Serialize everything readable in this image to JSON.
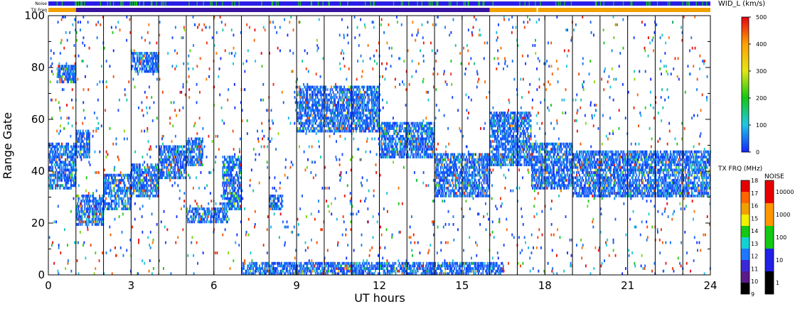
{
  "chart_data": {
    "type": "heatmap",
    "xlabel": "UT hours",
    "ylabel": "Range Gate",
    "x_ticks": [
      "0",
      "3",
      "6",
      "9",
      "12",
      "15",
      "18",
      "21",
      "24"
    ],
    "y_ticks": [
      "0",
      "20",
      "40",
      "60",
      "80",
      "100"
    ],
    "xlim": [
      0,
      24
    ],
    "ylim": [
      0,
      100
    ],
    "grid": "vertical lines every hour",
    "top_bar_labels": {
      "noise": "Noise",
      "txfreq": "TX Freq"
    },
    "colorbar_width": {
      "title": "WID_L (km/s)",
      "ticks": [
        "0",
        "100",
        "200",
        "300",
        "400",
        "500"
      ],
      "range": [
        0,
        500
      ]
    },
    "colorbar_txfreq": {
      "title": "TX FRQ (MHz)",
      "ticks": [
        "9",
        "10",
        "11",
        "12",
        "13",
        "14",
        "15",
        "16",
        "17",
        "18"
      ],
      "colors": [
        "#000000",
        "#5a1a8a",
        "#3a28d8",
        "#1e78ff",
        "#14d2d2",
        "#14c814",
        "#f0f000",
        "#f0a000",
        "#ff6400",
        "#e60000"
      ]
    },
    "colorbar_noise": {
      "title": "NOISE",
      "ticks": [
        "1",
        "10",
        "100",
        "1000",
        "10000"
      ],
      "colors": [
        "#000000",
        "#2020e6",
        "#14c814",
        "#ff9600",
        "#e60000"
      ]
    },
    "bands": [
      {
        "t0": 0.0,
        "t1": 1.0,
        "g0": 33,
        "g1": 50
      },
      {
        "t0": 1.0,
        "t1": 2.0,
        "g0": 19,
        "g1": 30
      },
      {
        "t0": 2.0,
        "t1": 3.0,
        "g0": 25,
        "g1": 38
      },
      {
        "t0": 3.0,
        "t1": 4.0,
        "g0": 30,
        "g1": 42
      },
      {
        "t0": 4.0,
        "t1": 5.0,
        "g0": 37,
        "g1": 49
      },
      {
        "t0": 5.0,
        "t1": 5.6,
        "g0": 42,
        "g1": 52
      },
      {
        "t0": 6.3,
        "t1": 7.0,
        "g0": 25,
        "g1": 45
      },
      {
        "t0": 9.0,
        "t1": 12.0,
        "g0": 55,
        "g1": 72
      },
      {
        "t0": 12.0,
        "t1": 14.0,
        "g0": 45,
        "g1": 58
      },
      {
        "t0": 14.0,
        "t1": 16.0,
        "g0": 30,
        "g1": 46
      },
      {
        "t0": 16.0,
        "t1": 17.5,
        "g0": 42,
        "g1": 62
      },
      {
        "t0": 17.5,
        "t1": 19.0,
        "g0": 33,
        "g1": 50
      },
      {
        "t0": 19.0,
        "t1": 24.0,
        "g0": 30,
        "g1": 47
      },
      {
        "t0": 1.0,
        "t1": 1.5,
        "g0": 45,
        "g1": 55
      },
      {
        "t0": 3.0,
        "t1": 4.0,
        "g0": 78,
        "g1": 85
      },
      {
        "t0": 0.3,
        "t1": 1.0,
        "g0": 74,
        "g1": 80
      },
      {
        "t0": 7.0,
        "t1": 16.5,
        "g0": 0,
        "g1": 4
      },
      {
        "t0": 5.0,
        "t1": 6.5,
        "g0": 20,
        "g1": 25
      },
      {
        "t0": 8.0,
        "t1": 8.5,
        "g0": 25,
        "g1": 30
      }
    ]
  }
}
